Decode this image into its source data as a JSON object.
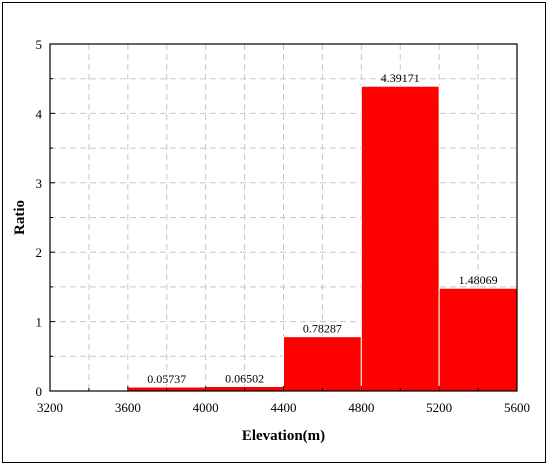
{
  "chart_data": {
    "type": "bar",
    "title": "",
    "xlabel": "Elevation(m)",
    "ylabel": "Ratio",
    "xlim": [
      3200,
      5600
    ],
    "ylim": [
      0,
      5
    ],
    "x_ticks": [
      3200,
      3600,
      4000,
      4400,
      4800,
      5200,
      5600
    ],
    "y_ticks": [
      0,
      1,
      2,
      3,
      4,
      5
    ],
    "grid": true,
    "bar_color": "#ff0000",
    "bars": [
      {
        "x0": 3600,
        "x1": 4000,
        "value": 0.05737,
        "label": "0.05737"
      },
      {
        "x0": 4000,
        "x1": 4400,
        "value": 0.06502,
        "label": "0.06502"
      },
      {
        "x0": 4400,
        "x1": 4800,
        "value": 0.78287,
        "label": "0.78287"
      },
      {
        "x0": 4800,
        "x1": 5200,
        "value": 4.39171,
        "label": "4.39171"
      },
      {
        "x0": 5200,
        "x1": 5600,
        "value": 1.48069,
        "label": "1.48069"
      }
    ]
  }
}
